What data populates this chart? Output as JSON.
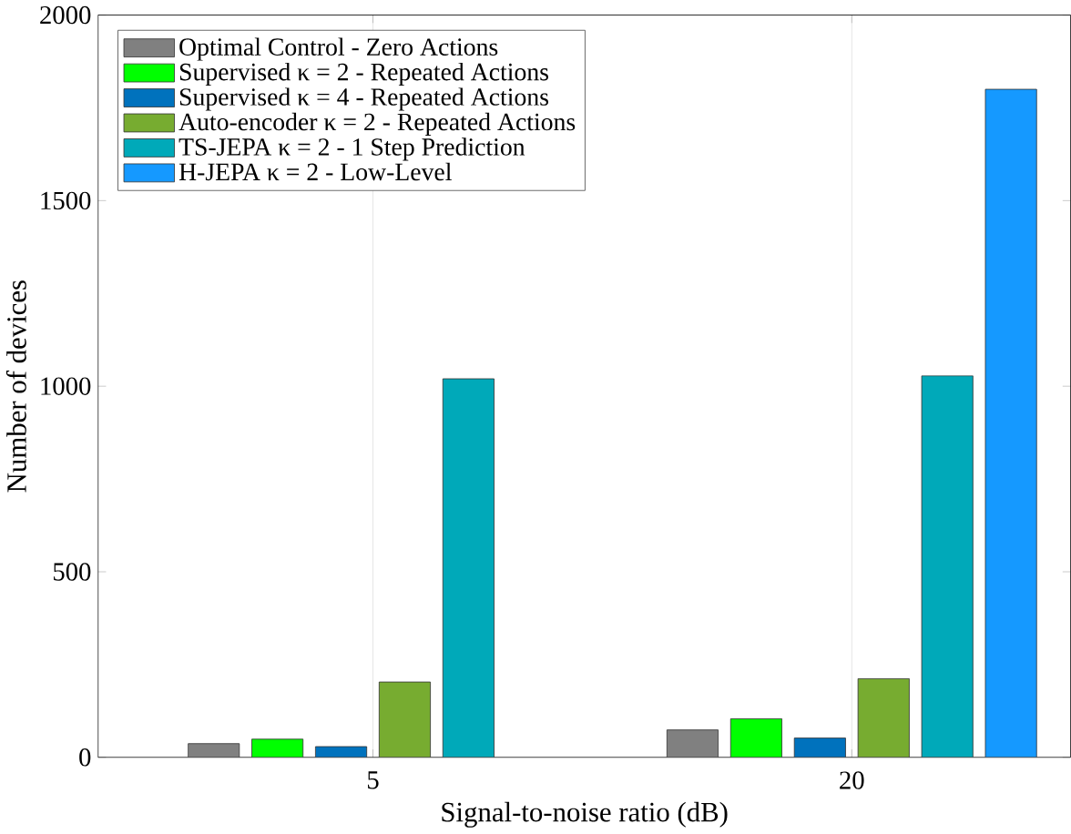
{
  "chart_data": {
    "type": "bar",
    "xlabel": "Signal-to-noise ratio (dB)",
    "ylabel": "Number of devices",
    "categories": [
      "5",
      "20"
    ],
    "series": [
      {
        "name": "Optimal Control - Zero Actions",
        "color": "#808080",
        "values": [
          37,
          74
        ]
      },
      {
        "name": "Supervised κ = 2 - Repeated Actions",
        "color": "#00ff00",
        "values": [
          49,
          104
        ]
      },
      {
        "name": "Supervised κ = 4 - Repeated Actions",
        "color": "#0072bd",
        "values": [
          29,
          52
        ]
      },
      {
        "name": "Auto-encoder κ = 2 - Repeated Actions",
        "color": "#77ac30",
        "values": [
          203,
          212
        ]
      },
      {
        "name": "TS-JEPA κ = 2 - 1 Step Prediction",
        "color": "#00a9b9",
        "values": [
          1020,
          1028
        ]
      },
      {
        "name": "H-JEPA κ = 2 - Low-Level",
        "color": "#1599ff",
        "values": [
          null,
          1800
        ]
      }
    ],
    "ylim": [
      0,
      2000
    ],
    "yticks": [
      0,
      500,
      1000,
      1500,
      2000
    ],
    "grid": "x",
    "legend": "top left"
  }
}
